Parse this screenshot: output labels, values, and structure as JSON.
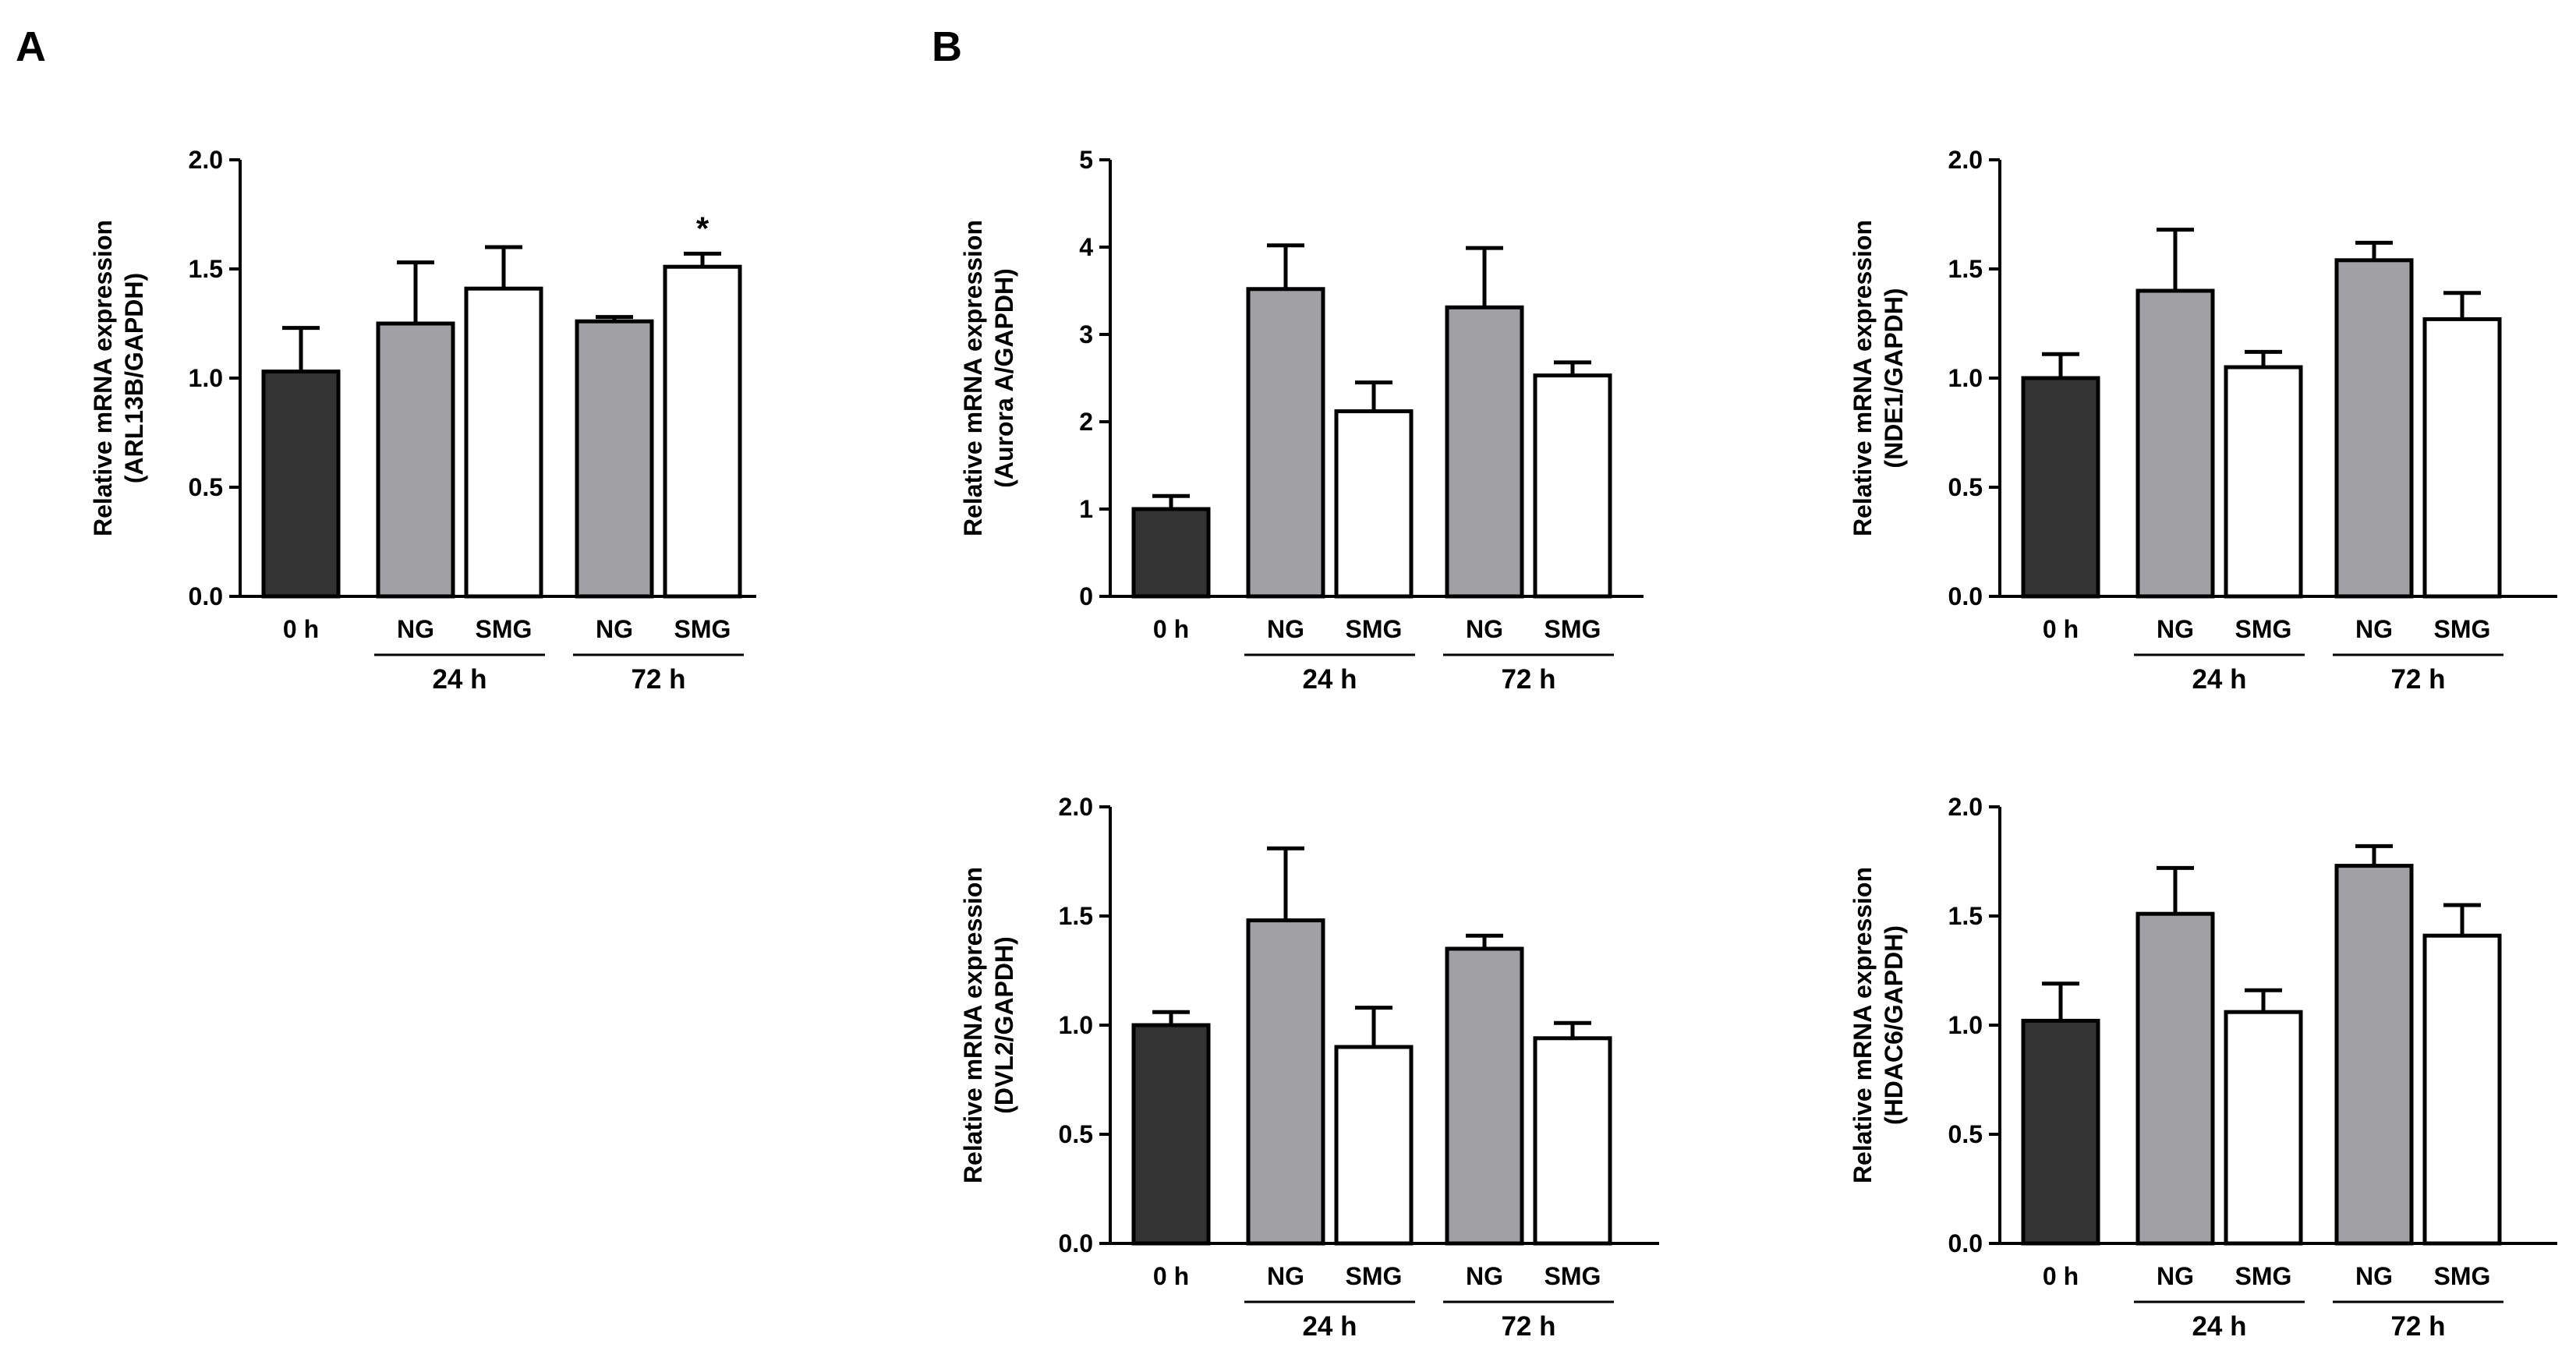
{
  "panel_labels": [
    "A",
    "B"
  ],
  "colors": {
    "dark": "#333333",
    "gray": "#a0a0a5",
    "white": "#ffffff",
    "axis": "#000000"
  },
  "chart_data": [
    {
      "type": "bar",
      "panel": "A",
      "title": "",
      "ylabel_lines": [
        "Relative mRNA expression",
        "(ARL13B/GAPDH)"
      ],
      "categories": [
        "0 h",
        "NG",
        "SMG",
        "NG",
        "SMG"
      ],
      "groups": [
        {
          "label": "24 h",
          "span": [
            1,
            2
          ]
        },
        {
          "label": "72 h",
          "span": [
            3,
            4
          ]
        }
      ],
      "values": [
        1.03,
        1.25,
        1.41,
        1.26,
        1.51
      ],
      "errors": [
        0.2,
        0.28,
        0.19,
        0.02,
        0.06
      ],
      "fills": [
        "dark",
        "gray",
        "white",
        "gray",
        "white"
      ],
      "significance": [
        null,
        null,
        null,
        null,
        "*"
      ],
      "ylim": [
        0,
        2.0
      ],
      "yticks": [
        "0.0",
        "0.5",
        "1.0",
        "1.5",
        "2.0"
      ]
    },
    {
      "type": "bar",
      "panel": "B",
      "title": "",
      "ylabel_lines": [
        "Relative mRNA expression",
        "(Aurora A/GAPDH)"
      ],
      "categories": [
        "0 h",
        "NG",
        "SMG",
        "NG",
        "SMG"
      ],
      "groups": [
        {
          "label": "24 h",
          "span": [
            1,
            2
          ]
        },
        {
          "label": "72 h",
          "span": [
            3,
            4
          ]
        }
      ],
      "values": [
        1.0,
        3.52,
        2.12,
        3.31,
        2.53
      ],
      "errors": [
        0.15,
        0.5,
        0.33,
        0.68,
        0.15
      ],
      "fills": [
        "dark",
        "gray",
        "white",
        "gray",
        "white"
      ],
      "significance": [
        null,
        null,
        null,
        null,
        null
      ],
      "ylim": [
        0,
        5
      ],
      "yticks": [
        "0",
        "1",
        "2",
        "3",
        "4",
        "5"
      ]
    },
    {
      "type": "bar",
      "panel": "B",
      "title": "",
      "ylabel_lines": [
        "Relative mRNA expression",
        "(NDE1/GAPDH)"
      ],
      "categories": [
        "0 h",
        "NG",
        "SMG",
        "NG",
        "SMG"
      ],
      "groups": [
        {
          "label": "24 h",
          "span": [
            1,
            2
          ]
        },
        {
          "label": "72 h",
          "span": [
            3,
            4
          ]
        }
      ],
      "values": [
        1.0,
        1.4,
        1.05,
        1.54,
        1.27
      ],
      "errors": [
        0.11,
        0.28,
        0.07,
        0.08,
        0.12
      ],
      "fills": [
        "dark",
        "gray",
        "white",
        "gray",
        "white"
      ],
      "significance": [
        null,
        null,
        null,
        null,
        null
      ],
      "ylim": [
        0,
        2.0
      ],
      "yticks": [
        "0.0",
        "0.5",
        "1.0",
        "1.5",
        "2.0"
      ]
    },
    {
      "type": "bar",
      "panel": "B",
      "title": "",
      "ylabel_lines": [
        "Relative mRNA expression",
        "(DVL2/GAPDH)"
      ],
      "categories": [
        "0 h",
        "NG",
        "SMG",
        "NG",
        "SMG"
      ],
      "groups": [
        {
          "label": "24 h",
          "span": [
            1,
            2
          ]
        },
        {
          "label": "72 h",
          "span": [
            3,
            4
          ]
        }
      ],
      "values": [
        1.0,
        1.48,
        0.9,
        1.35,
        0.94
      ],
      "errors": [
        0.06,
        0.33,
        0.18,
        0.06,
        0.07
      ],
      "fills": [
        "dark",
        "gray",
        "white",
        "gray",
        "white"
      ],
      "significance": [
        null,
        null,
        null,
        null,
        null
      ],
      "ylim": [
        0,
        2.0
      ],
      "yticks": [
        "0.0",
        "0.5",
        "1.0",
        "1.5",
        "2.0"
      ]
    },
    {
      "type": "bar",
      "panel": "B",
      "title": "",
      "ylabel_lines": [
        "Relative mRNA expression",
        "(HDAC6/GAPDH)"
      ],
      "categories": [
        "0 h",
        "NG",
        "SMG",
        "NG",
        "SMG"
      ],
      "groups": [
        {
          "label": "24 h",
          "span": [
            1,
            2
          ]
        },
        {
          "label": "72 h",
          "span": [
            3,
            4
          ]
        }
      ],
      "values": [
        1.02,
        1.51,
        1.06,
        1.73,
        1.41
      ],
      "errors": [
        0.17,
        0.21,
        0.1,
        0.09,
        0.14
      ],
      "fills": [
        "dark",
        "gray",
        "white",
        "gray",
        "white"
      ],
      "significance": [
        null,
        null,
        null,
        null,
        null
      ],
      "ylim": [
        0,
        2.0
      ],
      "yticks": [
        "0.0",
        "0.5",
        "1.0",
        "1.5",
        "2.0"
      ]
    }
  ]
}
